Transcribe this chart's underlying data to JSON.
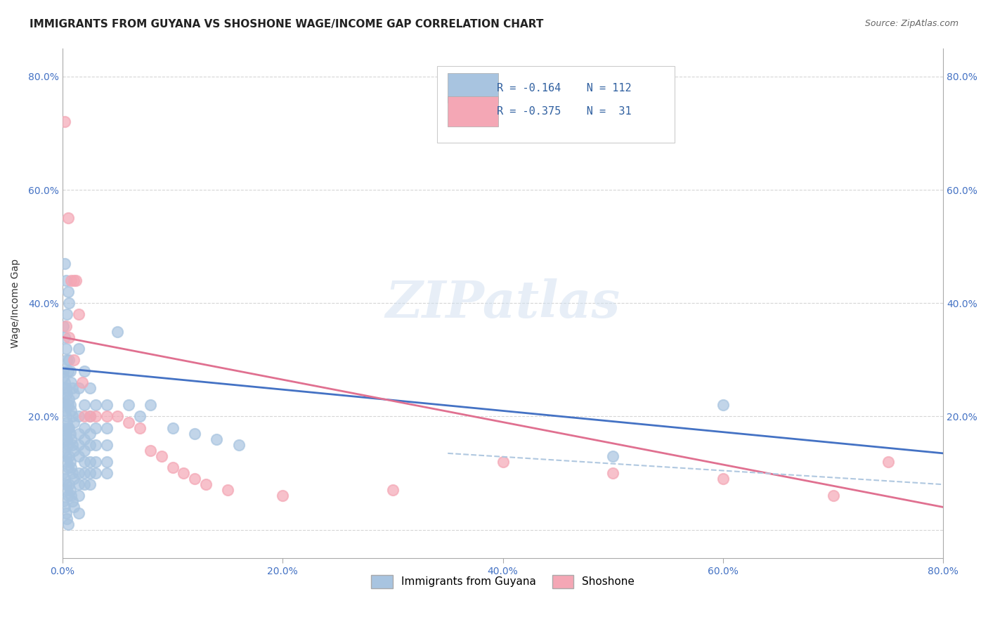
{
  "title": "IMMIGRANTS FROM GUYANA VS SHOSHONE WAGE/INCOME GAP CORRELATION CHART",
  "source": "Source: ZipAtlas.com",
  "ylabel": "Wage/Income Gap",
  "xlim": [
    0.0,
    0.8
  ],
  "ylim": [
    -0.05,
    0.85
  ],
  "ytick_labels": [
    "",
    "20.0%",
    "40.0%",
    "60.0%",
    "80.0%"
  ],
  "ytick_values": [
    0.0,
    0.2,
    0.4,
    0.6,
    0.8
  ],
  "xtick_labels": [
    "0.0%",
    "20.0%",
    "40.0%",
    "60.0%",
    "80.0%"
  ],
  "xtick_values": [
    0.0,
    0.2,
    0.4,
    0.6,
    0.8
  ],
  "blue_color": "#a8c4e0",
  "pink_color": "#f4a7b5",
  "blue_line_color": "#4472c4",
  "pink_line_color": "#e07090",
  "dash_line_color": "#b0c8e0",
  "legend_R1_val": "-0.164",
  "legend_N1_val": "112",
  "legend_R2_val": "-0.375",
  "legend_N2_val": " 31",
  "legend_label1": "Immigrants from Guyana",
  "legend_label2": "Shoshone",
  "watermark": "ZIPatlas",
  "title_fontsize": 11,
  "axis_label_fontsize": 10,
  "tick_fontsize": 10,
  "blue_scatter": [
    [
      0.002,
      0.47
    ],
    [
      0.003,
      0.44
    ],
    [
      0.004,
      0.38
    ],
    [
      0.005,
      0.42
    ],
    [
      0.006,
      0.4
    ],
    [
      0.001,
      0.36
    ],
    [
      0.002,
      0.34
    ],
    [
      0.003,
      0.32
    ],
    [
      0.004,
      0.3
    ],
    [
      0.005,
      0.28
    ],
    [
      0.001,
      0.28
    ],
    [
      0.002,
      0.26
    ],
    [
      0.003,
      0.25
    ],
    [
      0.004,
      0.24
    ],
    [
      0.005,
      0.22
    ],
    [
      0.001,
      0.22
    ],
    [
      0.002,
      0.21
    ],
    [
      0.003,
      0.2
    ],
    [
      0.004,
      0.19
    ],
    [
      0.005,
      0.18
    ],
    [
      0.001,
      0.18
    ],
    [
      0.002,
      0.17
    ],
    [
      0.003,
      0.17
    ],
    [
      0.004,
      0.16
    ],
    [
      0.005,
      0.15
    ],
    [
      0.001,
      0.15
    ],
    [
      0.002,
      0.14
    ],
    [
      0.003,
      0.13
    ],
    [
      0.004,
      0.12
    ],
    [
      0.005,
      0.11
    ],
    [
      0.001,
      0.1
    ],
    [
      0.002,
      0.09
    ],
    [
      0.003,
      0.08
    ],
    [
      0.004,
      0.07
    ],
    [
      0.005,
      0.06
    ],
    [
      0.001,
      0.05
    ],
    [
      0.002,
      0.04
    ],
    [
      0.003,
      0.03
    ],
    [
      0.004,
      0.02
    ],
    [
      0.005,
      0.01
    ],
    [
      0.006,
      0.3
    ],
    [
      0.007,
      0.28
    ],
    [
      0.008,
      0.26
    ],
    [
      0.009,
      0.25
    ],
    [
      0.01,
      0.24
    ],
    [
      0.006,
      0.23
    ],
    [
      0.007,
      0.22
    ],
    [
      0.008,
      0.21
    ],
    [
      0.009,
      0.2
    ],
    [
      0.01,
      0.19
    ],
    [
      0.006,
      0.18
    ],
    [
      0.007,
      0.17
    ],
    [
      0.008,
      0.16
    ],
    [
      0.009,
      0.15
    ],
    [
      0.01,
      0.14
    ],
    [
      0.006,
      0.13
    ],
    [
      0.007,
      0.12
    ],
    [
      0.008,
      0.11
    ],
    [
      0.009,
      0.1
    ],
    [
      0.01,
      0.09
    ],
    [
      0.006,
      0.08
    ],
    [
      0.007,
      0.07
    ],
    [
      0.008,
      0.06
    ],
    [
      0.009,
      0.05
    ],
    [
      0.01,
      0.04
    ],
    [
      0.015,
      0.32
    ],
    [
      0.015,
      0.25
    ],
    [
      0.015,
      0.2
    ],
    [
      0.015,
      0.17
    ],
    [
      0.015,
      0.15
    ],
    [
      0.015,
      0.13
    ],
    [
      0.015,
      0.1
    ],
    [
      0.015,
      0.08
    ],
    [
      0.015,
      0.06
    ],
    [
      0.015,
      0.03
    ],
    [
      0.02,
      0.28
    ],
    [
      0.02,
      0.22
    ],
    [
      0.02,
      0.18
    ],
    [
      0.02,
      0.16
    ],
    [
      0.02,
      0.14
    ],
    [
      0.02,
      0.12
    ],
    [
      0.02,
      0.1
    ],
    [
      0.02,
      0.08
    ],
    [
      0.025,
      0.25
    ],
    [
      0.025,
      0.2
    ],
    [
      0.025,
      0.17
    ],
    [
      0.025,
      0.15
    ],
    [
      0.025,
      0.12
    ],
    [
      0.025,
      0.1
    ],
    [
      0.025,
      0.08
    ],
    [
      0.03,
      0.22
    ],
    [
      0.03,
      0.18
    ],
    [
      0.03,
      0.15
    ],
    [
      0.03,
      0.12
    ],
    [
      0.03,
      0.1
    ],
    [
      0.04,
      0.22
    ],
    [
      0.04,
      0.18
    ],
    [
      0.04,
      0.15
    ],
    [
      0.04,
      0.12
    ],
    [
      0.04,
      0.1
    ],
    [
      0.05,
      0.35
    ],
    [
      0.06,
      0.22
    ],
    [
      0.07,
      0.2
    ],
    [
      0.08,
      0.22
    ],
    [
      0.1,
      0.18
    ],
    [
      0.12,
      0.17
    ],
    [
      0.14,
      0.16
    ],
    [
      0.16,
      0.15
    ],
    [
      0.5,
      0.13
    ],
    [
      0.6,
      0.22
    ],
    [
      0.0005,
      0.27
    ],
    [
      0.0005,
      0.25
    ],
    [
      0.0005,
      0.23
    ]
  ],
  "pink_scatter": [
    [
      0.002,
      0.72
    ],
    [
      0.005,
      0.55
    ],
    [
      0.008,
      0.44
    ],
    [
      0.012,
      0.44
    ],
    [
      0.015,
      0.38
    ],
    [
      0.003,
      0.36
    ],
    [
      0.006,
      0.34
    ],
    [
      0.01,
      0.3
    ],
    [
      0.018,
      0.26
    ],
    [
      0.02,
      0.2
    ],
    [
      0.025,
      0.2
    ],
    [
      0.03,
      0.2
    ],
    [
      0.04,
      0.2
    ],
    [
      0.05,
      0.2
    ],
    [
      0.06,
      0.19
    ],
    [
      0.07,
      0.18
    ],
    [
      0.08,
      0.14
    ],
    [
      0.09,
      0.13
    ],
    [
      0.1,
      0.11
    ],
    [
      0.11,
      0.1
    ],
    [
      0.12,
      0.09
    ],
    [
      0.13,
      0.08
    ],
    [
      0.15,
      0.07
    ],
    [
      0.2,
      0.06
    ],
    [
      0.3,
      0.07
    ],
    [
      0.4,
      0.12
    ],
    [
      0.5,
      0.1
    ],
    [
      0.6,
      0.09
    ],
    [
      0.7,
      0.06
    ],
    [
      0.75,
      0.12
    ],
    [
      0.01,
      0.44
    ]
  ],
  "blue_trendline": [
    [
      0.0,
      0.285
    ],
    [
      0.8,
      0.135
    ]
  ],
  "pink_trendline": [
    [
      0.0,
      0.34
    ],
    [
      0.8,
      0.04
    ]
  ],
  "blue_dash_trendline": [
    [
      0.35,
      0.135
    ],
    [
      0.8,
      0.08
    ]
  ]
}
